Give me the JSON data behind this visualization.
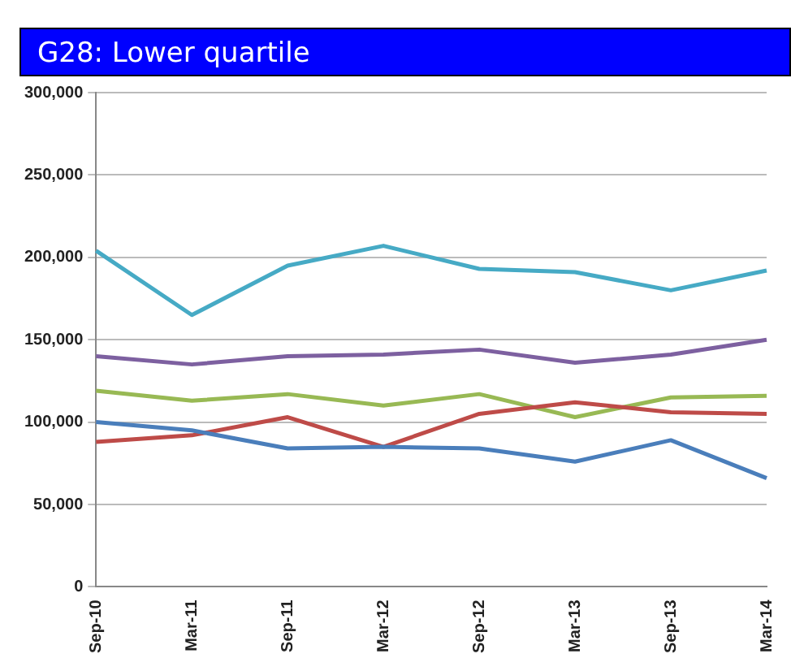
{
  "chart_data": {
    "type": "line",
    "title": "G28: Lower quartile",
    "categories": [
      "Sep-10",
      "Mar-11",
      "Sep-11",
      "Mar-12",
      "Sep-12",
      "Mar-13",
      "Sep-13",
      "Mar-14"
    ],
    "series": [
      {
        "color": "#4a7ebb",
        "values": [
          100000,
          95000,
          84000,
          85000,
          84000,
          76000,
          89000,
          66000
        ]
      },
      {
        "color": "#be4b48",
        "values": [
          88000,
          92000,
          103000,
          85000,
          105000,
          112000,
          106000,
          105000
        ]
      },
      {
        "color": "#98b954",
        "values": [
          119000,
          113000,
          117000,
          110000,
          117000,
          103000,
          115000,
          116000
        ]
      },
      {
        "color": "#7d60a0",
        "values": [
          140000,
          135000,
          140000,
          141000,
          144000,
          136000,
          141000,
          150000
        ]
      },
      {
        "color": "#46aac5",
        "values": [
          204000,
          165000,
          195000,
          207000,
          193000,
          191000,
          180000,
          192000
        ]
      }
    ],
    "ylim": [
      0,
      300000
    ],
    "yticks": [
      0,
      {
        "value": 50000,
        "label": "50,000"
      },
      {
        "value": 100000,
        "label": "100,000"
      },
      {
        "value": 150000,
        "label": "150,000"
      },
      {
        "value": 200000,
        "label": "200,000"
      },
      {
        "value": 250000,
        "label": "250,000"
      },
      {
        "value": 300000,
        "label": "300,000"
      }
    ],
    "grid": "y",
    "legend": false,
    "marker": "none",
    "line_style": "solid"
  }
}
